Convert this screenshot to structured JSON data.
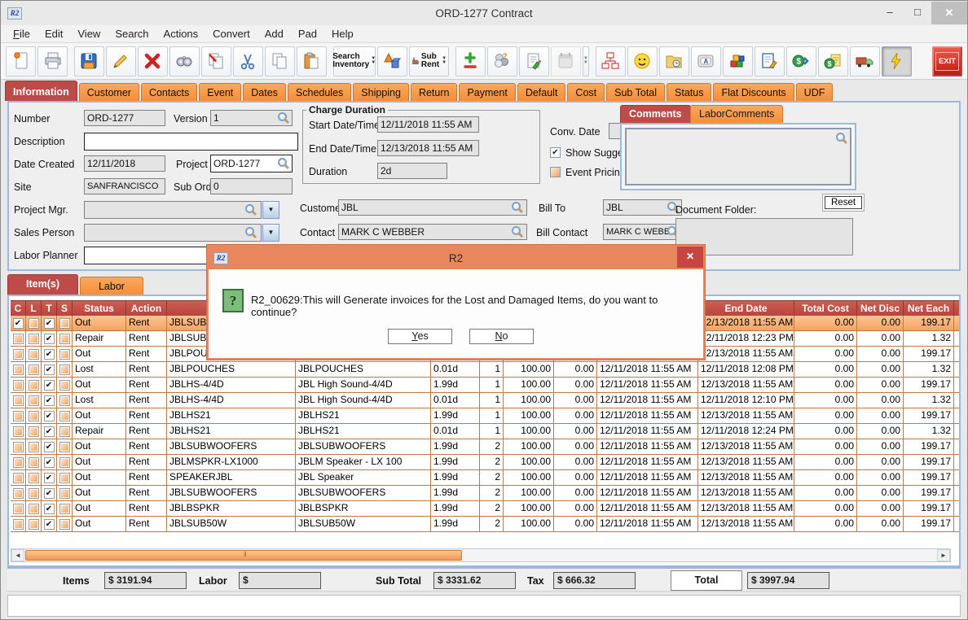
{
  "window": {
    "title": "ORD-1277 Contract",
    "app_icon": "R2"
  },
  "menu": {
    "items": [
      "File",
      "Edit",
      "View",
      "Search",
      "Actions",
      "Convert",
      "Add",
      "Pad",
      "Help"
    ]
  },
  "toolbar": {
    "search_inventory_label": "Search Inventory",
    "sub_rent_label": "Sub Rent",
    "exit_label": "EXIT",
    "buttons": [
      "new",
      "print",
      "save",
      "edit",
      "delete",
      "find",
      "copy-special",
      "cut",
      "copy",
      "paste",
      "search-inventory",
      "logistics",
      "sub-rent",
      "add",
      "people",
      "notes",
      "calendar",
      "org-chart",
      "smiley",
      "folder-clock",
      "key-a",
      "cubes",
      "doc-edit",
      "money-forward",
      "invoice",
      "truck",
      "lightning",
      "exit"
    ]
  },
  "tabs": {
    "active": "Information",
    "items": [
      "Information",
      "Customer",
      "Contacts",
      "Event",
      "Dates",
      "Schedules",
      "Shipping",
      "Return",
      "Payment",
      "Default",
      "Cost",
      "Sub Total",
      "Status",
      "Flat Discounts",
      "UDF"
    ]
  },
  "info": {
    "number_label": "Number",
    "number": "ORD-1277",
    "version_label": "Version",
    "version": "1",
    "description_label": "Description",
    "description": "",
    "date_created_label": "Date Created",
    "date_created": "12/11/2018",
    "project_label": "Project",
    "project": "ORD-1277",
    "site_label": "Site",
    "site": "SANFRANCISCO",
    "sub_orders_label": "Sub Orders",
    "sub_orders": "0",
    "project_mgr_label": "Project Mgr.",
    "project_mgr": "",
    "sales_person_label": "Sales Person",
    "sales_person": "",
    "labor_planner_label": "Labor Planner",
    "labor_planner": ""
  },
  "charge": {
    "legend": "Charge Duration",
    "start_label": "Start Date/Time",
    "start": "12/11/2018 11:55 AM",
    "end_label": "End Date/Time",
    "end": "12/13/2018 11:55 AM",
    "duration_label": "Duration",
    "duration": "2d",
    "conv_label": "Conv. Date",
    "conv": "",
    "show_suggestions_label": "Show Suggestions",
    "show_suggestions_checked": true,
    "event_pricing_label": "Event Pricing",
    "event_pricing_checked": false
  },
  "parties": {
    "customer_label": "Customer",
    "customer": "JBL",
    "bill_to_label": "Bill To",
    "bill_to": "JBL",
    "contact_label": "Contact",
    "contact": "MARK C WEBBER",
    "bill_contact_label": "Bill Contact",
    "bill_contact": "MARK C WEBBER"
  },
  "comments": {
    "tabs": [
      "Comments",
      "LaborComments"
    ],
    "active": "Comments",
    "text": "",
    "document_folder_label": "Document Folder:",
    "reset_label": "Reset"
  },
  "items_section": {
    "tabs": [
      "Item(s)",
      "Labor"
    ],
    "active": "Item(s)"
  },
  "table": {
    "highlighted_row": 0,
    "columns": [
      {
        "label": "C",
        "width": 19,
        "align": "center"
      },
      {
        "label": "L",
        "width": 19,
        "align": "center"
      },
      {
        "label": "T",
        "width": 19,
        "align": "center"
      },
      {
        "label": "S",
        "width": 19,
        "align": "center"
      },
      {
        "label": "Status",
        "width": 66,
        "align": "left"
      },
      {
        "label": "Action",
        "width": 50,
        "align": "left"
      },
      {
        "label": "",
        "width": 158,
        "align": "left"
      },
      {
        "label": "",
        "width": 166,
        "align": "left"
      },
      {
        "label": "",
        "width": 60,
        "align": "left"
      },
      {
        "label": "",
        "width": 29,
        "align": "right"
      },
      {
        "label": "",
        "width": 62,
        "align": "right"
      },
      {
        "label": "",
        "width": 53,
        "align": "right"
      },
      {
        "label": "",
        "width": 124,
        "align": "left"
      },
      {
        "label": "End Date",
        "width": 118,
        "align": "left"
      },
      {
        "label": "Total Cost",
        "width": 77,
        "align": "right"
      },
      {
        "label": "Net Disc",
        "width": 57,
        "align": "right"
      },
      {
        "label": "Net Each",
        "width": 62,
        "align": "right"
      },
      {
        "label": "",
        "width": 8,
        "align": "left"
      }
    ],
    "rows": [
      {
        "checks": [
          1,
          0,
          1,
          0
        ],
        "cells": [
          "Out",
          "Rent",
          "JBLSUBWOOFERS",
          "",
          "",
          "",
          "",
          "",
          "",
          "12/13/2018 11:55 AM",
          "0.00",
          "0.00",
          "199.17"
        ]
      },
      {
        "checks": [
          0,
          0,
          1,
          0
        ],
        "cells": [
          "Repair",
          "Rent",
          "JBLSUBWOOFERS",
          "",
          "",
          "",
          "",
          "",
          "",
          "12/11/2018 12:23 PM",
          "0.00",
          "0.00",
          "1.32"
        ]
      },
      {
        "checks": [
          0,
          0,
          1,
          0
        ],
        "cells": [
          "Out",
          "Rent",
          "JBLPOUCHES",
          "",
          "",
          "",
          "",
          "",
          "",
          "12/13/2018 11:55 AM",
          "0.00",
          "0.00",
          "199.17"
        ]
      },
      {
        "checks": [
          0,
          0,
          1,
          0
        ],
        "cells": [
          "Lost",
          "Rent",
          "JBLPOUCHES",
          "JBLPOUCHES",
          "0.01d",
          "1",
          "100.00",
          "0.00",
          "12/11/2018 11:55 AM",
          "12/11/2018 12:08 PM",
          "0.00",
          "0.00",
          "1.32"
        ]
      },
      {
        "checks": [
          0,
          0,
          1,
          0
        ],
        "cells": [
          "Out",
          "Rent",
          "JBLHS-4/4D",
          "JBL High Sound-4/4D",
          "1.99d",
          "1",
          "100.00",
          "0.00",
          "12/11/2018 11:55 AM",
          "12/13/2018 11:55 AM",
          "0.00",
          "0.00",
          "199.17"
        ]
      },
      {
        "checks": [
          0,
          0,
          1,
          0
        ],
        "cells": [
          "Lost",
          "Rent",
          "JBLHS-4/4D",
          "JBL High Sound-4/4D",
          "0.01d",
          "1",
          "100.00",
          "0.00",
          "12/11/2018 11:55 AM",
          "12/11/2018 12:10 PM",
          "0.00",
          "0.00",
          "1.32"
        ]
      },
      {
        "checks": [
          0,
          0,
          1,
          0
        ],
        "cells": [
          "Out",
          "Rent",
          "JBLHS21",
          "JBLHS21",
          "1.99d",
          "1",
          "100.00",
          "0.00",
          "12/11/2018 11:55 AM",
          "12/13/2018 11:55 AM",
          "0.00",
          "0.00",
          "199.17"
        ]
      },
      {
        "checks": [
          0,
          0,
          1,
          0
        ],
        "cells": [
          "Repair",
          "Rent",
          "JBLHS21",
          "JBLHS21",
          "0.01d",
          "1",
          "100.00",
          "0.00",
          "12/11/2018 11:55 AM",
          "12/11/2018 12:24 PM",
          "0.00",
          "0.00",
          "1.32"
        ]
      },
      {
        "checks": [
          0,
          0,
          1,
          0
        ],
        "cells": [
          "Out",
          "Rent",
          "JBLSUBWOOFERS",
          "JBLSUBWOOFERS",
          "1.99d",
          "2",
          "100.00",
          "0.00",
          "12/11/2018 11:55 AM",
          "12/13/2018 11:55 AM",
          "0.00",
          "0.00",
          "199.17"
        ]
      },
      {
        "checks": [
          0,
          0,
          1,
          0
        ],
        "cells": [
          "Out",
          "Rent",
          "JBLMSPKR-LX1000",
          "JBLM Speaker - LX 100",
          "1.99d",
          "2",
          "100.00",
          "0.00",
          "12/11/2018 11:55 AM",
          "12/13/2018 11:55 AM",
          "0.00",
          "0.00",
          "199.17"
        ]
      },
      {
        "checks": [
          0,
          0,
          1,
          0
        ],
        "cells": [
          "Out",
          "Rent",
          "SPEAKERJBL",
          "JBL Speaker",
          "1.99d",
          "2",
          "100.00",
          "0.00",
          "12/11/2018 11:55 AM",
          "12/13/2018 11:55 AM",
          "0.00",
          "0.00",
          "199.17"
        ]
      },
      {
        "checks": [
          0,
          0,
          1,
          0
        ],
        "cells": [
          "Out",
          "Rent",
          "JBLSUBWOOFERS",
          "JBLSUBWOOFERS",
          "1.99d",
          "2",
          "100.00",
          "0.00",
          "12/11/2018 11:55 AM",
          "12/13/2018 11:55 AM",
          "0.00",
          "0.00",
          "199.17"
        ]
      },
      {
        "checks": [
          0,
          0,
          1,
          0
        ],
        "cells": [
          "Out",
          "Rent",
          "JBLBSPKR",
          "JBLBSPKR",
          "1.99d",
          "2",
          "100.00",
          "0.00",
          "12/11/2018 11:55 AM",
          "12/13/2018 11:55 AM",
          "0.00",
          "0.00",
          "199.17"
        ]
      },
      {
        "checks": [
          0,
          0,
          1,
          0
        ],
        "cells": [
          "Out",
          "Rent",
          "JBLSUB50W",
          "JBLSUB50W",
          "1.99d",
          "2",
          "100.00",
          "0.00",
          "12/11/2018 11:55 AM",
          "12/13/2018 11:55 AM",
          "0.00",
          "0.00",
          "199.17"
        ]
      }
    ]
  },
  "totals": {
    "items_label": "Items",
    "items": "$ 3191.94",
    "labor_label": "Labor",
    "labor": "$",
    "sub_total_label": "Sub Total",
    "sub_total": "$ 3331.62",
    "tax_label": "Tax",
    "tax": "$ 666.32",
    "total_label": "Total",
    "total": "$ 3997.94"
  },
  "dialog": {
    "title": "R2",
    "icon": "?",
    "message": "R2_00629:This will Generate invoices for the Lost and Damaged Items, do you want to continue?",
    "yes_label": "Yes",
    "no_label": "No"
  },
  "colors": {
    "tab_orange": "#F79A4D",
    "active_tab_red": "#BE4B48",
    "dialog_titlebar": "#E8875E",
    "row_highlight": "#F8A15F",
    "grid_line": "#C1793F",
    "exit_red": "#BD1A12",
    "scroll_thumb": "#F5975A"
  }
}
